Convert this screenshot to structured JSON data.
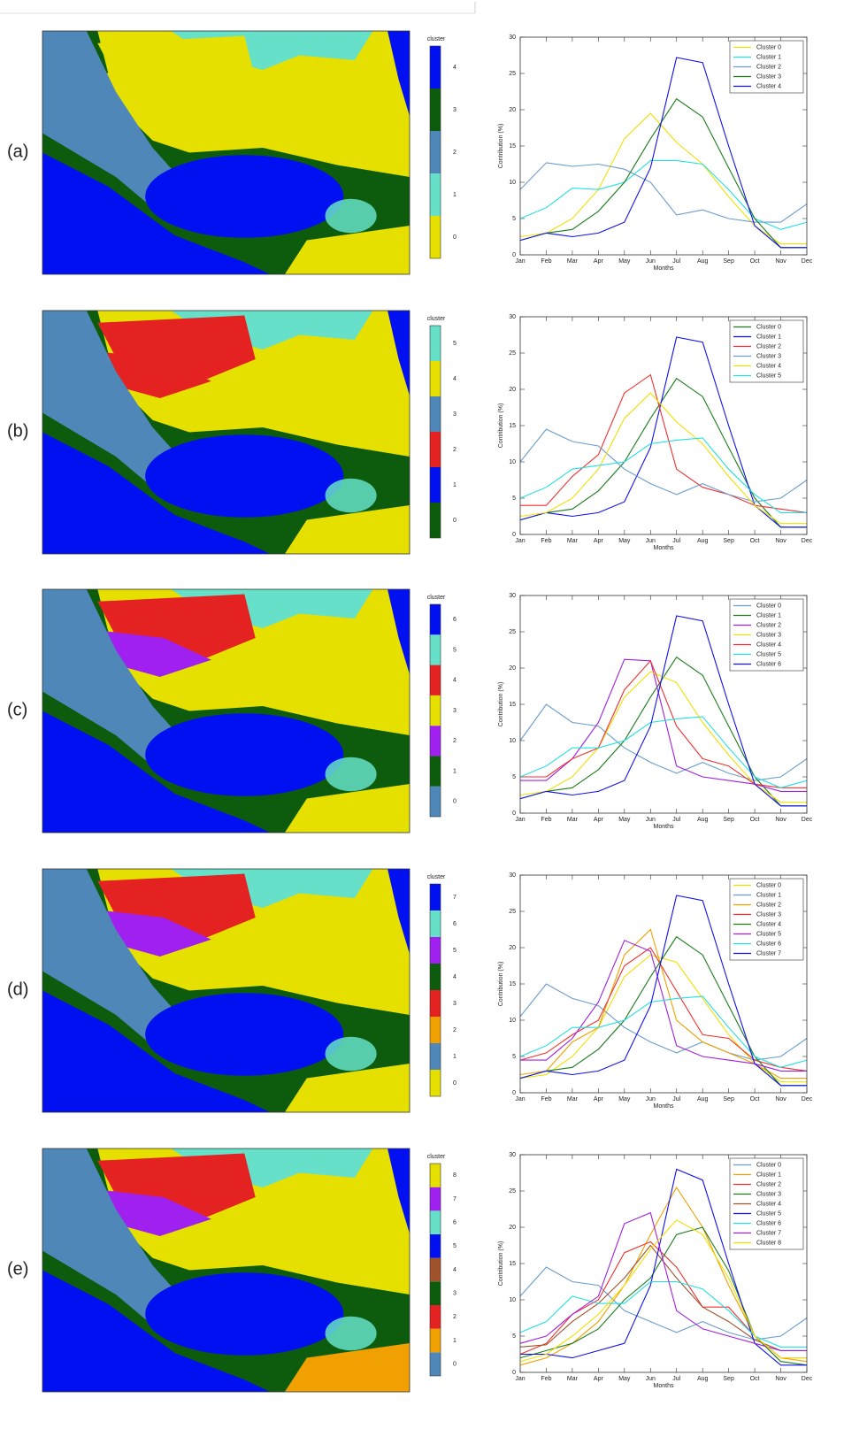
{
  "maps": [
    {
      "label": "(a)",
      "colorbar_title": "cluster",
      "colorbar_ticks": [
        0,
        1,
        2,
        3,
        4
      ],
      "colorbar_colors": [
        "#e6e000",
        "#66e0c8",
        "#4f87b8",
        "#0d5c0d",
        "#0010f0"
      ]
    },
    {
      "label": "(b)",
      "colorbar_title": "cluster",
      "colorbar_ticks": [
        0,
        1,
        2,
        3,
        4,
        5
      ],
      "colorbar_colors": [
        "#0d5c0d",
        "#0010f0",
        "#e52222",
        "#4f87b8",
        "#e6e000",
        "#66e0c8"
      ]
    },
    {
      "label": "(c)",
      "colorbar_title": "cluster",
      "colorbar_ticks": [
        0,
        1,
        2,
        3,
        4,
        5,
        6
      ],
      "colorbar_colors": [
        "#4f87b8",
        "#0d5c0d",
        "#a020f0",
        "#e6e000",
        "#e52222",
        "#66e0c8",
        "#0010f0"
      ]
    },
    {
      "label": "(d)",
      "colorbar_title": "cluster",
      "colorbar_ticks": [
        0,
        1,
        2,
        3,
        4,
        5,
        6,
        7
      ],
      "colorbar_colors": [
        "#e6e000",
        "#4f87b8",
        "#f0a000",
        "#e52222",
        "#0d5c0d",
        "#a020f0",
        "#66e0c8",
        "#0010f0"
      ]
    },
    {
      "label": "(e)",
      "colorbar_title": "cluster",
      "colorbar_ticks": [
        0,
        1,
        2,
        3,
        4,
        5,
        6,
        7,
        8
      ],
      "colorbar_colors": [
        "#4f87b8",
        "#f0a000",
        "#e52222",
        "#0d5c0d",
        "#a0522d",
        "#0010f0",
        "#66e0c8",
        "#a020f0",
        "#e6e000"
      ]
    }
  ],
  "chart_data": [
    {
      "type": "line",
      "xlabel": "Months",
      "ylabel": "Contribution (%)",
      "categories": [
        "Jan",
        "Feb",
        "Mar",
        "Apr",
        "May",
        "Jun",
        "Jul",
        "Aug",
        "Sep",
        "Oct",
        "Nov",
        "Dec"
      ],
      "ylim": [
        0,
        30
      ],
      "yticks": [
        0,
        5,
        10,
        15,
        20,
        25,
        30
      ],
      "legend": "upper right",
      "series": [
        {
          "name": "Cluster 0",
          "color": "#f0e000",
          "values": [
            2.5,
            3,
            5,
            9,
            16,
            19.5,
            15.5,
            12.5,
            8,
            4,
            1.5,
            1.5
          ]
        },
        {
          "name": "Cluster 1",
          "color": "#22e0e0",
          "values": [
            5,
            6.5,
            9.2,
            9,
            10,
            13,
            13,
            12.5,
            9,
            5,
            3.5,
            4.5
          ]
        },
        {
          "name": "Cluster 2",
          "color": "#6a9ccc",
          "values": [
            9,
            12.7,
            12.2,
            12.5,
            11.8,
            10,
            5.5,
            6.2,
            5,
            4.5,
            4.5,
            7
          ]
        },
        {
          "name": "Cluster 3",
          "color": "#1c7c1c",
          "values": [
            2,
            3,
            3.5,
            6,
            10,
            16,
            21.5,
            19,
            12,
            5,
            1,
            1
          ]
        },
        {
          "name": "Cluster 4",
          "color": "#1010f0",
          "values": [
            2,
            3,
            2.5,
            3,
            4.5,
            12,
            27.2,
            26.5,
            15,
            4,
            1,
            1
          ]
        }
      ]
    },
    {
      "type": "line",
      "xlabel": "Months",
      "ylabel": "Contribution (%)",
      "categories": [
        "Jan",
        "Feb",
        "Mar",
        "Apr",
        "May",
        "Jun",
        "Jul",
        "Aug",
        "Sep",
        "Oct",
        "Nov",
        "Dec"
      ],
      "ylim": [
        0,
        30
      ],
      "yticks": [
        0,
        5,
        10,
        15,
        20,
        25,
        30
      ],
      "legend": "upper right",
      "series": [
        {
          "name": "Cluster 0",
          "color": "#1c7c1c",
          "values": [
            2,
            3,
            3.5,
            6,
            10,
            16,
            21.5,
            19,
            12,
            5,
            1,
            1
          ]
        },
        {
          "name": "Cluster 1",
          "color": "#1010f0",
          "values": [
            2,
            3,
            2.5,
            3,
            4.5,
            12,
            27.2,
            26.5,
            15,
            4,
            1,
            1
          ]
        },
        {
          "name": "Cluster 2",
          "color": "#f03030",
          "values": [
            4,
            4,
            8,
            11,
            19.5,
            22,
            9,
            6.5,
            5.5,
            4,
            3.5,
            3
          ]
        },
        {
          "name": "Cluster 3",
          "color": "#6a9ccc",
          "values": [
            10,
            14.5,
            12.8,
            12.2,
            9,
            7,
            5.5,
            7,
            5.5,
            4.5,
            5,
            7.5
          ]
        },
        {
          "name": "Cluster 4",
          "color": "#f0e000",
          "values": [
            2.5,
            3,
            5,
            9,
            16,
            19.5,
            15.5,
            12.5,
            8,
            4,
            1.5,
            1.5
          ]
        },
        {
          "name": "Cluster 5",
          "color": "#22e0e0",
          "values": [
            5,
            6.5,
            9,
            9.5,
            10,
            12.5,
            13,
            13.3,
            9,
            5.5,
            3,
            3
          ]
        }
      ]
    },
    {
      "type": "line",
      "xlabel": "Months",
      "ylabel": "Contribution (%)",
      "categories": [
        "Jan",
        "Feb",
        "Mar",
        "Apr",
        "May",
        "Jun",
        "Jul",
        "Aug",
        "Sep",
        "Oct",
        "Nov",
        "Dec"
      ],
      "ylim": [
        0,
        30
      ],
      "yticks": [
        0,
        5,
        10,
        15,
        20,
        25,
        30
      ],
      "legend": "upper right",
      "series": [
        {
          "name": "Cluster 0",
          "color": "#6a9ccc",
          "values": [
            10,
            15,
            12.5,
            12,
            9,
            7,
            5.5,
            7,
            5.5,
            4.5,
            5,
            7.5
          ]
        },
        {
          "name": "Cluster 1",
          "color": "#1c7c1c",
          "values": [
            2,
            3,
            3.5,
            6,
            10,
            16,
            21.5,
            19,
            12,
            5,
            1,
            1
          ]
        },
        {
          "name": "Cluster 2",
          "color": "#a020e0",
          "values": [
            4.5,
            4.5,
            7.5,
            12.5,
            21.2,
            21,
            6.5,
            5,
            4.5,
            4,
            3,
            3
          ]
        },
        {
          "name": "Cluster 3",
          "color": "#f0e000",
          "values": [
            2.5,
            3,
            5,
            9,
            16,
            19.5,
            18,
            12.5,
            8,
            4,
            1.5,
            1.5
          ]
        },
        {
          "name": "Cluster 4",
          "color": "#f03030",
          "values": [
            5,
            5,
            7.5,
            9,
            17,
            21,
            12,
            7.5,
            6.5,
            4,
            3.5,
            3.5
          ]
        },
        {
          "name": "Cluster 5",
          "color": "#22e0e0",
          "values": [
            5,
            6.5,
            9,
            9,
            10,
            12.5,
            13,
            13.3,
            9,
            5,
            3.5,
            4.5
          ]
        },
        {
          "name": "Cluster 6",
          "color": "#1010f0",
          "values": [
            2,
            3,
            2.5,
            3,
            4.5,
            12,
            27.2,
            26.5,
            15,
            4,
            1,
            1
          ]
        }
      ]
    },
    {
      "type": "line",
      "xlabel": "Months",
      "ylabel": "Contribution (%)",
      "categories": [
        "Jan",
        "Feb",
        "Mar",
        "Apr",
        "May",
        "Jun",
        "Jul",
        "Aug",
        "Sep",
        "Oct",
        "Nov",
        "Dec"
      ],
      "ylim": [
        0,
        30
      ],
      "yticks": [
        0,
        5,
        10,
        15,
        20,
        25,
        30
      ],
      "legend": "upper right",
      "series": [
        {
          "name": "Cluster 0",
          "color": "#f0e000",
          "values": [
            2,
            2.5,
            5,
            9,
            16,
            19,
            18,
            13,
            8,
            4,
            1.5,
            1.5
          ]
        },
        {
          "name": "Cluster 1",
          "color": "#6a9ccc",
          "values": [
            10.5,
            15,
            13,
            12,
            9,
            7,
            5.5,
            7,
            5.5,
            4.5,
            5,
            7.5
          ]
        },
        {
          "name": "Cluster 2",
          "color": "#f0a000",
          "values": [
            2.5,
            3,
            7,
            9,
            19,
            22.5,
            10,
            7,
            5.5,
            4,
            2,
            2
          ]
        },
        {
          "name": "Cluster 3",
          "color": "#f03030",
          "values": [
            4.5,
            5.5,
            8,
            10,
            17.5,
            20,
            14,
            8,
            7.5,
            4.5,
            3.5,
            3
          ]
        },
        {
          "name": "Cluster 4",
          "color": "#1c7c1c",
          "values": [
            2,
            3,
            3.5,
            6,
            10,
            16,
            21.5,
            19,
            12,
            5,
            1,
            1
          ]
        },
        {
          "name": "Cluster 5",
          "color": "#a020e0",
          "values": [
            4.5,
            4.5,
            7.5,
            12.5,
            21,
            19.5,
            6.5,
            5,
            4.5,
            4,
            3,
            3
          ]
        },
        {
          "name": "Cluster 6",
          "color": "#22e0e0",
          "values": [
            5,
            6.5,
            9,
            9,
            10,
            12.5,
            13,
            13.3,
            9,
            5,
            3.5,
            4.5
          ]
        },
        {
          "name": "Cluster 7",
          "color": "#1010f0",
          "values": [
            2,
            3,
            2.5,
            3,
            4.5,
            12,
            27.2,
            26.5,
            15,
            4,
            1,
            1
          ]
        }
      ]
    },
    {
      "type": "line",
      "xlabel": "Months",
      "ylabel": "Contribution (%)",
      "categories": [
        "Jan",
        "Feb",
        "Mar",
        "Apr",
        "May",
        "Jun",
        "Jul",
        "Aug",
        "Sep",
        "Oct",
        "Nov",
        "Dec"
      ],
      "ylim": [
        0,
        30
      ],
      "yticks": [
        0,
        5,
        10,
        15,
        20,
        25,
        30
      ],
      "legend": "upper right",
      "series": [
        {
          "name": "Cluster 0",
          "color": "#6a9ccc",
          "values": [
            10.5,
            14.5,
            12.5,
            12,
            8.5,
            7,
            5.5,
            7,
            5.5,
            4.5,
            5,
            7.5
          ]
        },
        {
          "name": "Cluster 1",
          "color": "#f0a000",
          "values": [
            1,
            2,
            4,
            7,
            12,
            19,
            25.5,
            20,
            12,
            5,
            2,
            1.5
          ]
        },
        {
          "name": "Cluster 2",
          "color": "#f03030",
          "values": [
            2.5,
            4,
            8,
            10,
            16.5,
            18,
            14.5,
            9,
            9,
            5,
            2,
            2
          ]
        },
        {
          "name": "Cluster 3",
          "color": "#1c7c1c",
          "values": [
            2,
            3,
            4,
            6,
            10,
            13,
            19,
            20,
            14,
            5,
            1.5,
            1
          ]
        },
        {
          "name": "Cluster 4",
          "color": "#a0522d",
          "values": [
            3.5,
            3.8,
            7,
            9.5,
            13,
            17.5,
            13,
            9,
            7,
            4.5,
            3,
            3
          ]
        },
        {
          "name": "Cluster 5",
          "color": "#1010f0",
          "values": [
            2.5,
            2.5,
            2,
            3,
            4,
            12,
            28,
            26.5,
            15,
            4,
            1,
            1
          ]
        },
        {
          "name": "Cluster 6",
          "color": "#22e0e0",
          "values": [
            5.5,
            7,
            10.5,
            9.5,
            9.5,
            12.5,
            12.5,
            11.5,
            8.5,
            5,
            3.5,
            3.5
          ]
        },
        {
          "name": "Cluster 7",
          "color": "#a020e0",
          "values": [
            4,
            5,
            8,
            10.5,
            20.5,
            22,
            8.5,
            6,
            5,
            4,
            3,
            3
          ]
        },
        {
          "name": "Cluster 8",
          "color": "#f0e000",
          "values": [
            1.5,
            2.5,
            5,
            8,
            12,
            17,
            21,
            19,
            13,
            5,
            2,
            2
          ]
        }
      ]
    }
  ]
}
